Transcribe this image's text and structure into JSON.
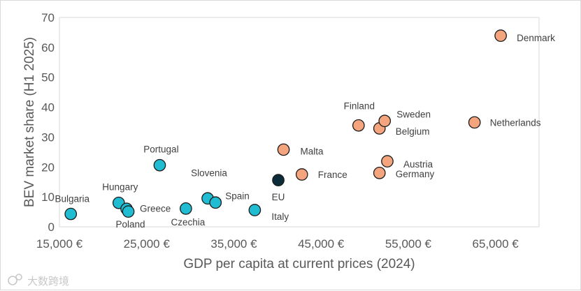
{
  "chart_data": {
    "type": "scatter",
    "title": "",
    "xlabel": "GDP per capita at current prices (2024)",
    "ylabel": "BEV market share (H1 2025)",
    "xlim": [
      15000,
      70000
    ],
    "ylim": [
      0,
      70
    ],
    "x_ticks": [
      15000,
      25000,
      35000,
      45000,
      55000,
      65000
    ],
    "x_tick_labels": [
      "15,000 €",
      "25,000 €",
      "35,000 €",
      "45,000 €",
      "55,000 €",
      "65,000 €"
    ],
    "y_ticks": [
      0,
      10,
      20,
      30,
      40,
      50,
      60,
      70
    ],
    "y_tick_labels": [
      "0",
      "10",
      "20",
      "30",
      "40",
      "50",
      "60",
      "70"
    ],
    "grid": false,
    "colors": {
      "below_average": "#1fbcd2",
      "above_average": "#f4a57e",
      "eu_average": "#0c2c3a",
      "outline": "#1a1a1a"
    },
    "points": [
      {
        "name": "Bulgaria",
        "x": 16300,
        "y": 4.3,
        "group": "below_average"
      },
      {
        "name": "Hungary",
        "x": 21800,
        "y": 8.0,
        "group": "below_average"
      },
      {
        "name": "Greece",
        "x": 22700,
        "y": 6.0,
        "group": "below_average"
      },
      {
        "name": "Poland",
        "x": 22900,
        "y": 5.1,
        "group": "below_average"
      },
      {
        "name": "Portugal",
        "x": 26500,
        "y": 20.6,
        "group": "below_average"
      },
      {
        "name": "Czechia",
        "x": 29500,
        "y": 6.1,
        "group": "below_average"
      },
      {
        "name": "Slovenia",
        "x": 32000,
        "y": 9.5,
        "group": "below_average"
      },
      {
        "name": "Spain",
        "x": 32900,
        "y": 8.1,
        "group": "below_average"
      },
      {
        "name": "Italy",
        "x": 37400,
        "y": 5.6,
        "group": "below_average"
      },
      {
        "name": "EU",
        "x": 40100,
        "y": 15.6,
        "group": "eu_average"
      },
      {
        "name": "Malta",
        "x": 40700,
        "y": 25.8,
        "group": "above_average"
      },
      {
        "name": "France",
        "x": 42800,
        "y": 17.5,
        "group": "above_average"
      },
      {
        "name": "Finland",
        "x": 49300,
        "y": 33.9,
        "group": "above_average"
      },
      {
        "name": "Belgium",
        "x": 51700,
        "y": 32.9,
        "group": "above_average"
      },
      {
        "name": "Sweden",
        "x": 52300,
        "y": 35.4,
        "group": "above_average"
      },
      {
        "name": "Austria",
        "x": 52600,
        "y": 21.9,
        "group": "above_average"
      },
      {
        "name": "Germany",
        "x": 51700,
        "y": 18.0,
        "group": "above_average"
      },
      {
        "name": "Netherlands",
        "x": 62600,
        "y": 34.9,
        "group": "above_average"
      },
      {
        "name": "Denmark",
        "x": 65600,
        "y": 63.9,
        "group": "above_average"
      }
    ]
  },
  "watermark": {
    "text": "大数跨境"
  }
}
